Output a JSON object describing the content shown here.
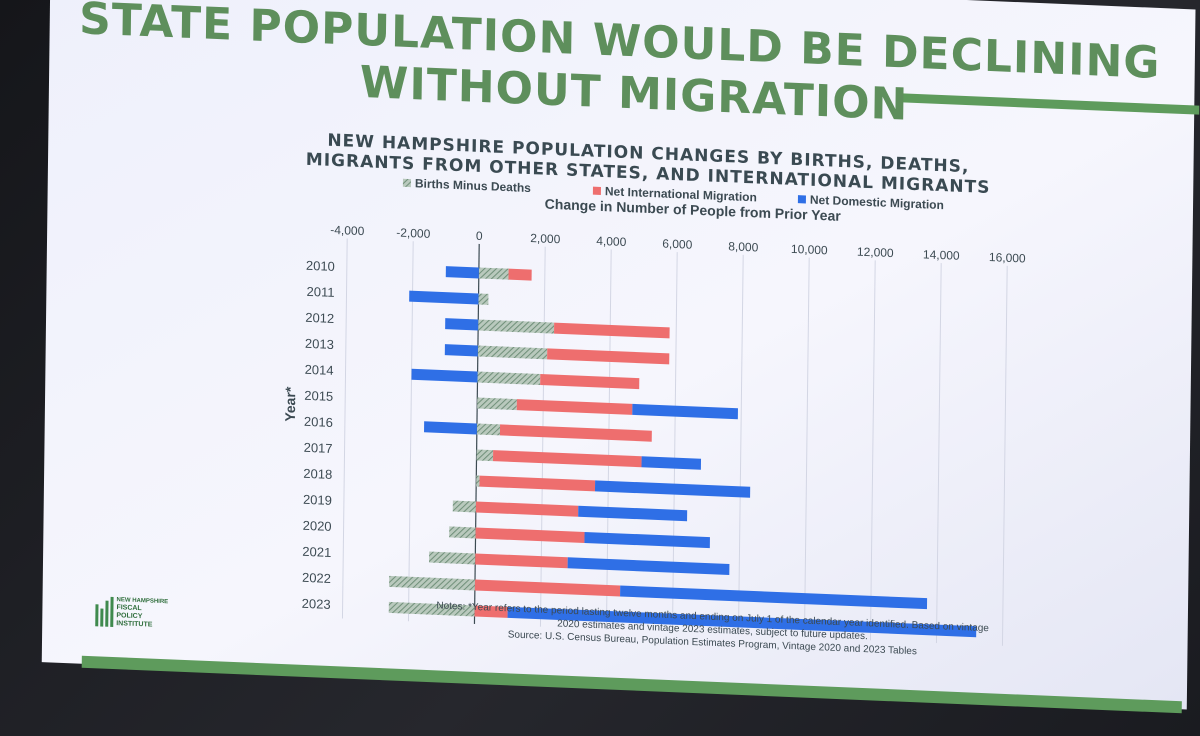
{
  "slide": {
    "title_line1": "STATE POPULATION WOULD BE DECLINING",
    "title_line2": "WITHOUT MIGRATION",
    "accent": "#5e9b5c"
  },
  "chart_data": {
    "type": "bar",
    "orientation": "horizontal",
    "stacked": true,
    "title_line1": "NEW HAMPSHIRE POPULATION CHANGES BY BIRTHS, DEATHS,",
    "title_line2": "MIGRANTS FROM OTHER STATES, AND INTERNATIONAL MIGRANTS",
    "xlabel": "Change in Number of People from Prior Year",
    "ylabel": "Year*",
    "xlim": [
      -4000,
      16000
    ],
    "xticks": [
      "-4,000",
      "-2,000",
      "0",
      "2,000",
      "4,000",
      "6,000",
      "8,000",
      "10,000",
      "12,000",
      "14,000",
      "16,000"
    ],
    "grid": true,
    "legend_position": "top",
    "categories": [
      "2010",
      "2011",
      "2012",
      "2013",
      "2014",
      "2015",
      "2016",
      "2017",
      "2018",
      "2019",
      "2020",
      "2021",
      "2022",
      "2023"
    ],
    "series": [
      {
        "name": "Births Minus Deaths",
        "color": "#8fa89a",
        "pattern": "hatched",
        "values": [
          900,
          300,
          2300,
          2100,
          1900,
          1200,
          700,
          500,
          100,
          -700,
          -800,
          -1400,
          -2600,
          -2600
        ]
      },
      {
        "name": "Net International Migration",
        "color": "#ee6e6e",
        "values": [
          700,
          0,
          3500,
          3700,
          3000,
          3500,
          4600,
          4500,
          3500,
          3100,
          3300,
          2800,
          4400,
          1000
        ]
      },
      {
        "name": "Net Domestic Migration",
        "color": "#2f6fe6",
        "values": [
          -1000,
          -2100,
          -1000,
          -1000,
          -2000,
          3200,
          -1600,
          1800,
          4700,
          3300,
          3800,
          4900,
          9300,
          14200
        ]
      }
    ]
  },
  "notes": {
    "line1": "Notes: *Year refers to the period lasting twelve months and ending on July 1 of the calendar year identified. Based on vintage",
    "line2": "2020 estimates and vintage 2023 estimates, subject to future updates.",
    "line3": "Source: U.S. Census Bureau, Population Estimates Program, Vintage 2020 and 2023 Tables"
  },
  "logo": {
    "line1": "NEW HAMPSHIRE",
    "line2": "FISCAL",
    "line3": "POLICY",
    "line4": "INSTITUTE"
  }
}
